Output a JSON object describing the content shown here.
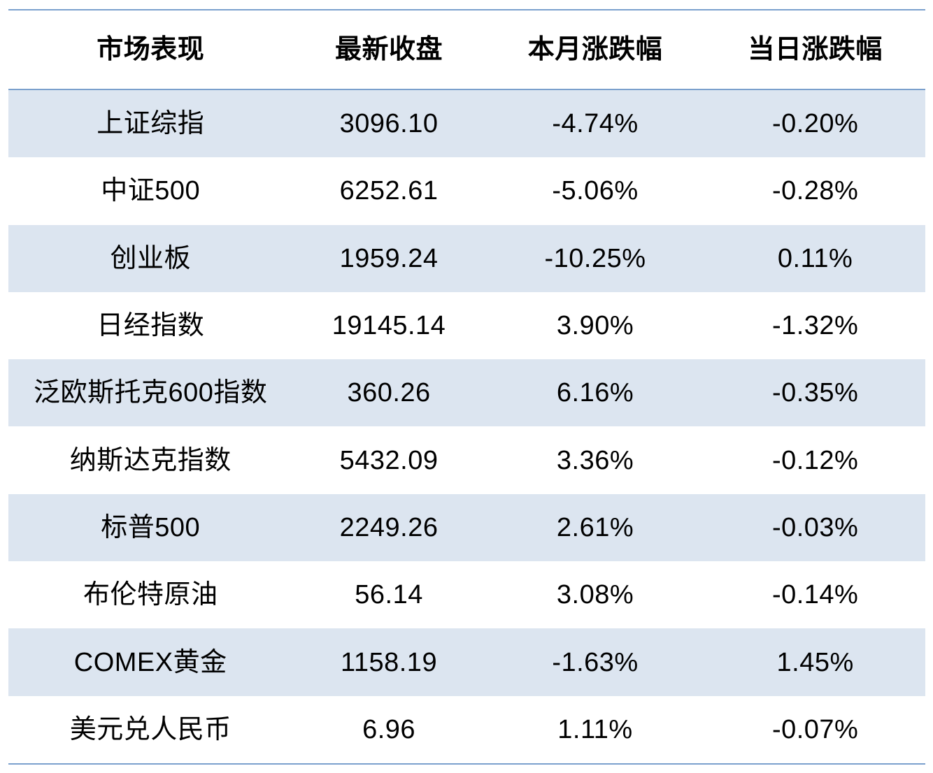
{
  "chart_data": {
    "type": "table",
    "title": "市场表现",
    "columns": [
      "市场表现",
      "最新收盘",
      "本月涨跌幅",
      "当日涨跌幅"
    ],
    "rows": [
      {
        "name": "上证综指",
        "latest_close": "3096.10",
        "month_change": "-4.74%",
        "day_change": "-0.20%"
      },
      {
        "name": "中证500",
        "latest_close": "6252.61",
        "month_change": "-5.06%",
        "day_change": "-0.28%"
      },
      {
        "name": "创业板",
        "latest_close": "1959.24",
        "month_change": "-10.25%",
        "day_change": "0.11%"
      },
      {
        "name": "日经指数",
        "latest_close": "19145.14",
        "month_change": "3.90%",
        "day_change": "-1.32%"
      },
      {
        "name": "泛欧斯托克600指数",
        "latest_close": "360.26",
        "month_change": "6.16%",
        "day_change": "-0.35%"
      },
      {
        "name": "纳斯达克指数",
        "latest_close": "5432.09",
        "month_change": "3.36%",
        "day_change": "-0.12%"
      },
      {
        "name": "标普500",
        "latest_close": "2249.26",
        "month_change": "2.61%",
        "day_change": "-0.03%"
      },
      {
        "name": "布伦特原油",
        "latest_close": "56.14",
        "month_change": "3.08%",
        "day_change": "-0.14%"
      },
      {
        "name": "COMEX黄金",
        "latest_close": "1158.19",
        "month_change": "-1.63%",
        "day_change": "1.45%"
      },
      {
        "name": "美元兑人民币",
        "latest_close": "6.96",
        "month_change": "1.11%",
        "day_change": "-0.07%"
      }
    ]
  },
  "colors": {
    "accent_line": "#7ba0cd",
    "stripe_fill": "#dce5f0",
    "text": "#000000",
    "background": "#ffffff"
  }
}
